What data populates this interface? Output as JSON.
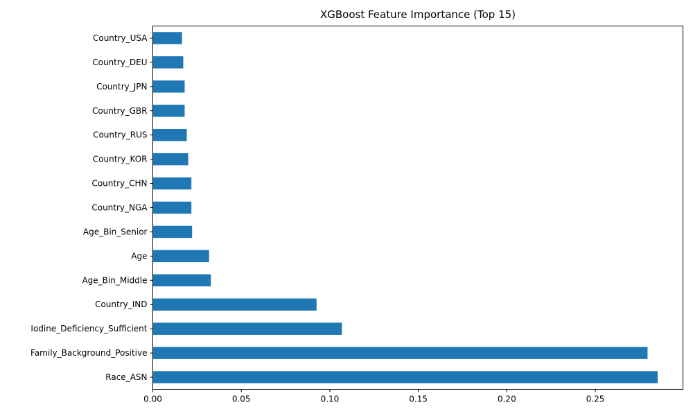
{
  "chart_data": {
    "type": "bar",
    "orientation": "horizontal",
    "title": "XGBoost Feature Importance (Top 15)",
    "xlabel": "",
    "ylabel": "",
    "categories": [
      "Country_USA",
      "Country_DEU",
      "Country_JPN",
      "Country_GBR",
      "Country_RUS",
      "Country_KOR",
      "Country_CHN",
      "Country_NGA",
      "Age_Bin_Senior",
      "Age",
      "Age_Bin_Middle",
      "Country_IND",
      "Iodine_Deficiency_Sufficient",
      "Family_Background_Positive",
      "Race_ASN"
    ],
    "values": [
      0.0165,
      0.0172,
      0.018,
      0.018,
      0.0192,
      0.02,
      0.0218,
      0.0218,
      0.0222,
      0.0318,
      0.0328,
      0.0925,
      0.1068,
      0.2795,
      0.2852
    ],
    "xlim": [
      0,
      0.2995
    ],
    "xticks": [
      "0.00",
      "0.05",
      "0.10",
      "0.15",
      "0.20",
      "0.25"
    ],
    "xtick_values": [
      0,
      0.05,
      0.1,
      0.15,
      0.2,
      0.25
    ],
    "grid": false,
    "legend": "none",
    "bar_color": "#1f77b4"
  }
}
